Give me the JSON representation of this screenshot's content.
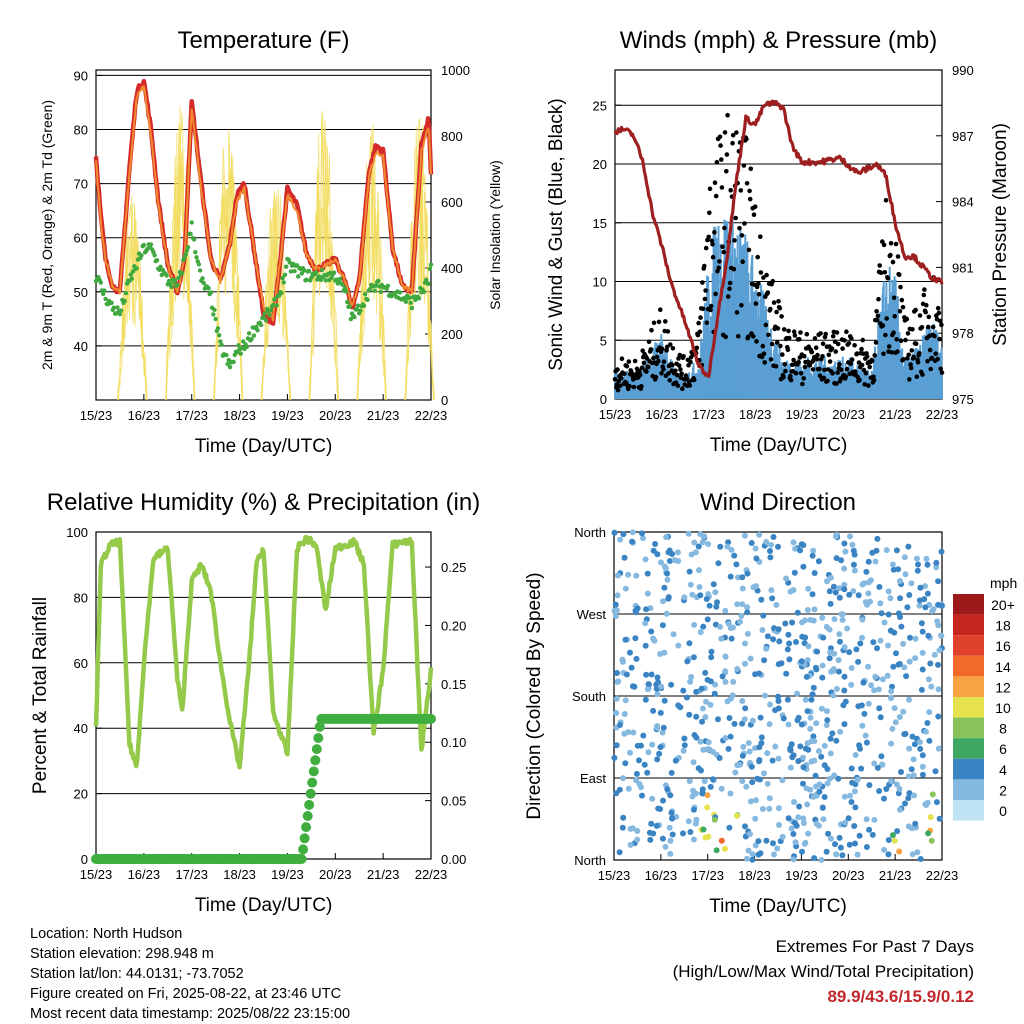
{
  "time_ticks": [
    "15/23",
    "16/23",
    "17/23",
    "18/23",
    "19/23",
    "20/23",
    "21/23",
    "22/23"
  ],
  "xlabel": "Time (Day/UTC)",
  "colors": {
    "t2m": "#d42a2a",
    "t9m": "#f28a2e",
    "td": "#3fa83f",
    "solar": "#f2dc5d",
    "gust": "#000000",
    "wind": "#5a9fd4",
    "pressure": "#9e1f1f",
    "rh": "#94c94a",
    "precip": "#3fae3f",
    "grid": "#000000"
  },
  "info": {
    "location": "Location: North Hudson",
    "elevation": "Station elevation: 298.948 m",
    "latlon": "Station lat/lon: 44.0131; -73.7052",
    "created": "Figure created on Fri, 2025-08-22, at 23:46 UTC",
    "recent": "Most recent data timestamp: 2025/08/22 23:15:00"
  },
  "extremes": {
    "title": "Extremes For Past 7 Days",
    "subtitle": "(High/Low/Max Wind/Total Precipitation)",
    "value": "89.9/43.6/15.9/0.12"
  },
  "chart_data": [
    {
      "type": "line",
      "title": "Temperature (F)",
      "ylabel": "2m & 9m T (Red, Orange) & 2m Td (Green)",
      "y2label": "Solar Insolation (Yellow)",
      "ylim": [
        30,
        91
      ],
      "y2lim": [
        0,
        1000
      ],
      "yticks": [
        40,
        50,
        60,
        70,
        80,
        90
      ],
      "y2ticks": [
        0,
        200,
        400,
        600,
        800,
        1000
      ],
      "x": [
        0,
        0.1,
        0.2,
        0.35,
        0.5,
        0.7,
        0.85,
        1.0,
        1.15,
        1.3,
        1.5,
        1.7,
        1.85,
        2.0,
        2.2,
        2.4,
        2.6,
        2.8,
        2.95,
        3.1,
        3.3,
        3.5,
        3.7,
        3.85,
        4.0,
        4.2,
        4.4,
        4.6,
        4.8,
        5.0,
        5.2,
        5.35,
        5.5,
        5.7,
        5.85,
        6.0,
        6.2,
        6.4,
        6.6,
        6.8,
        6.95,
        7.0
      ],
      "series": [
        {
          "name": "2m T",
          "values": [
            75,
            64,
            56,
            51,
            50,
            73,
            87,
            89,
            80,
            67,
            55,
            50,
            56,
            85,
            70,
            56,
            52,
            59,
            68,
            70,
            58,
            46,
            44,
            56,
            69,
            66,
            57,
            54,
            55,
            56,
            52,
            47,
            52,
            72,
            77,
            76,
            58,
            51,
            50,
            77,
            82,
            72
          ]
        },
        {
          "name": "9m T",
          "values": [
            74,
            63,
            56,
            51,
            50,
            72,
            86,
            88,
            79,
            66,
            55,
            50,
            56,
            84,
            69,
            56,
            52,
            59,
            67,
            69,
            58,
            47,
            45,
            56,
            68,
            65,
            57,
            54,
            55,
            56,
            52,
            47,
            52,
            71,
            76,
            75,
            58,
            51,
            50,
            76,
            81,
            72
          ]
        },
        {
          "name": "2m Td",
          "values": [
            53,
            51,
            49,
            47,
            46,
            52,
            55,
            58,
            58,
            55,
            52,
            51,
            56,
            62,
            52,
            49,
            40,
            36,
            39,
            40,
            43,
            45,
            47,
            50,
            55,
            54,
            53,
            53,
            53,
            53,
            50,
            45,
            47,
            50,
            51,
            51,
            50,
            49,
            48,
            50,
            52,
            55
          ]
        }
      ],
      "solar_days": [
        {
          "x": 0.75,
          "peak": 650
        },
        {
          "x": 1.75,
          "peak": 900
        },
        {
          "x": 2.75,
          "peak": 880
        },
        {
          "x": 3.75,
          "peak": 700
        },
        {
          "x": 4.75,
          "peak": 950
        },
        {
          "x": 5.75,
          "peak": 850
        },
        {
          "x": 6.75,
          "peak": 900
        }
      ]
    },
    {
      "type": "scatter",
      "title": "Winds (mph) & Pressure (mb)",
      "ylabel": "Sonic Wind & Gust (Blue, Black)",
      "y2label": "Station Pressure (Maroon)",
      "ylim": [
        0,
        28
      ],
      "y2lim": [
        975,
        990
      ],
      "yticks": [
        0,
        5,
        10,
        15,
        20,
        25
      ],
      "y2ticks": [
        975,
        978,
        981,
        984,
        987,
        990
      ],
      "pressure": {
        "x": [
          0,
          0.2,
          0.4,
          0.6,
          0.8,
          1.0,
          1.2,
          1.5,
          1.8,
          2.0,
          2.2,
          2.4,
          2.6,
          2.8,
          3.0,
          3.2,
          3.4,
          3.6,
          3.8,
          4.0,
          4.4,
          4.8,
          5.2,
          5.6,
          5.8,
          6.0,
          6.2,
          6.4,
          6.6,
          6.8,
          7.0
        ],
        "values": [
          987.2,
          987.3,
          987.0,
          985.8,
          983.5,
          982.0,
          980.3,
          978.5,
          976.5,
          976.0,
          978.8,
          981.5,
          985.0,
          987.8,
          987.5,
          988.4,
          988.5,
          988.3,
          986.5,
          985.8,
          985.8,
          986.0,
          985.3,
          985.7,
          985.2,
          983.0,
          981.5,
          981.5,
          981.0,
          980.5,
          980.3
        ]
      },
      "wind_envelope": {
        "x": [
          0,
          0.5,
          1.0,
          1.3,
          1.5,
          1.8,
          2.0,
          2.2,
          2.5,
          2.8,
          3.0,
          3.3,
          3.6,
          4.0,
          4.5,
          5.0,
          5.5,
          5.8,
          6.0,
          6.2,
          6.5,
          6.8,
          7.0
        ],
        "sustained": [
          2,
          2,
          5,
          2,
          2,
          3,
          10,
          14,
          14,
          12,
          10,
          6,
          3,
          3,
          3,
          3,
          2,
          10,
          9,
          3,
          4,
          6,
          4
        ],
        "gust": [
          3,
          3,
          7,
          4,
          3,
          6,
          18,
          20,
          22,
          20,
          15,
          10,
          6,
          5,
          5,
          5,
          4,
          15,
          14,
          6,
          7,
          10,
          7
        ]
      }
    },
    {
      "type": "line",
      "title": "Relative Humidity (%) & Precipitation (in)",
      "ylabel": "Percent & Total Rainfall",
      "ylim": [
        0,
        100
      ],
      "y2lim": [
        0,
        0.28
      ],
      "yticks": [
        0,
        20,
        40,
        60,
        80,
        100
      ],
      "y2ticks": [
        0.0,
        0.05,
        0.1,
        0.15,
        0.2,
        0.25
      ],
      "rh": {
        "x": [
          0,
          0.1,
          0.3,
          0.5,
          0.7,
          0.85,
          1.0,
          1.2,
          1.5,
          1.7,
          1.8,
          2.0,
          2.2,
          2.4,
          2.6,
          2.8,
          3.0,
          3.2,
          3.35,
          3.5,
          3.7,
          4.0,
          4.2,
          4.4,
          4.6,
          4.8,
          5.0,
          5.2,
          5.4,
          5.6,
          5.8,
          6.0,
          6.2,
          6.4,
          6.6,
          6.8,
          7.0
        ],
        "values": [
          40,
          90,
          96,
          97,
          35,
          28,
          60,
          92,
          95,
          55,
          45,
          85,
          90,
          82,
          60,
          42,
          28,
          60,
          90,
          95,
          45,
          32,
          95,
          98,
          96,
          76,
          95,
          96,
          97,
          90,
          38,
          58,
          96,
          97,
          97,
          33,
          58
        ]
      },
      "precip": {
        "x": [
          0,
          4.3,
          4.5,
          4.7,
          7.0
        ],
        "values": [
          0,
          0,
          0.06,
          0.12,
          0.12
        ]
      }
    },
    {
      "type": "scatter",
      "title": "Wind Direction",
      "ylabel": "Direction (Colored By Speed)",
      "yticks": [
        "North",
        "East",
        "South",
        "West",
        "North"
      ],
      "legend_title": "mph",
      "legend": [
        {
          "label": "20+",
          "color": "#9e1a1a"
        },
        {
          "label": "18",
          "color": "#c7261f"
        },
        {
          "label": "16",
          "color": "#e0412a"
        },
        {
          "label": "14",
          "color": "#f26a2a"
        },
        {
          "label": "12",
          "color": "#f7a344"
        },
        {
          "label": "10",
          "color": "#e6e14e"
        },
        {
          "label": "8",
          "color": "#87c35a"
        },
        {
          "label": "6",
          "color": "#3ea863"
        },
        {
          "label": "4",
          "color": "#3a84c3"
        },
        {
          "label": "2",
          "color": "#86b9e0"
        },
        {
          "label": "0",
          "color": "#bfe3f5"
        }
      ]
    }
  ]
}
